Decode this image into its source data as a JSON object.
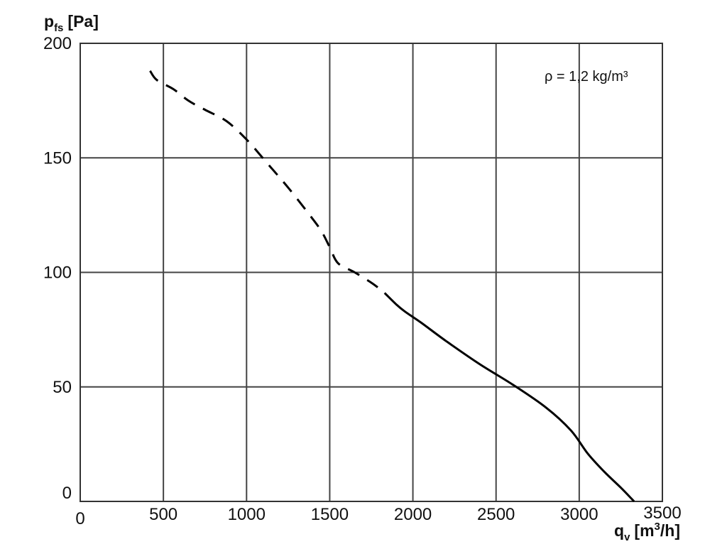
{
  "chart_data": {
    "type": "line",
    "title": "",
    "ylabel": {
      "main": "p",
      "sub": "fs",
      "unit": "[Pa]"
    },
    "xlabel": {
      "main": "q",
      "sub": "v",
      "unit_pre": "[m",
      "unit_sup": "3",
      "unit_post": "/h]"
    },
    "annotation": "ρ = 1,2 kg/m³",
    "xlim": [
      0,
      3500
    ],
    "ylim": [
      0,
      200
    ],
    "x_ticks": [
      0,
      500,
      1000,
      1500,
      2000,
      2500,
      3000,
      3500
    ],
    "y_ticks": [
      0,
      50,
      100,
      150,
      200
    ],
    "x_tick_labels": [
      "0",
      "500",
      "1000",
      "1500",
      "2000",
      "2500",
      "3000",
      "3500"
    ],
    "y_tick_labels": [
      "0",
      "50",
      "100",
      "150",
      "200"
    ],
    "grid": true,
    "series": [
      {
        "style": "dashed",
        "color": "#000000",
        "x": [
          420,
          460,
          560,
          650,
          750,
          880,
          1000,
          1120,
          1250,
          1380,
          1450,
          1500,
          1550,
          1650,
          1760,
          1830
        ],
        "y": [
          188,
          184,
          180,
          175,
          171,
          166,
          158,
          148,
          137,
          125,
          118,
          111,
          104,
          100,
          95,
          91
        ]
      },
      {
        "style": "solid",
        "color": "#000000",
        "x": [
          1830,
          1900,
          1950,
          2050,
          2200,
          2400,
          2600,
          2800,
          2950,
          3050,
          3150,
          3250,
          3330
        ],
        "y": [
          91,
          86,
          83,
          78,
          70,
          60,
          51,
          41,
          31,
          21,
          13,
          6,
          0
        ]
      }
    ]
  }
}
